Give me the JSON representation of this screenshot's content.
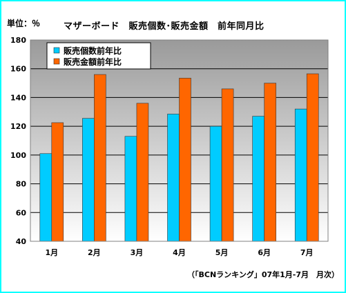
{
  "unit_label": "単位：％",
  "title": "マザーボード　販売個数･販売金額　前年同月比",
  "source_note": "（「BCNランキング」07年1月-7月　月次）",
  "colors": {
    "series_quantity": "#00ccff",
    "series_amount": "#ff6600",
    "frame_border": "#00ffff",
    "plot_bg_top": "#9a9a9a",
    "plot_bg_bottom": "#ffffff"
  },
  "chart_data": {
    "type": "bar",
    "title": "マザーボード　販売個数･販売金額　前年同月比",
    "ylabel": "単位：％",
    "xlabel": "",
    "categories": [
      "1月",
      "2月",
      "3月",
      "4月",
      "5月",
      "6月",
      "7月"
    ],
    "series": [
      {
        "name": "販売個数前年比",
        "values": [
          101,
          125.5,
          113,
          128.5,
          120,
          127,
          132
        ]
      },
      {
        "name": "販売金額前年比",
        "values": [
          122.5,
          156,
          136,
          153.5,
          146,
          150,
          156.5
        ]
      }
    ],
    "ylim": [
      40,
      180
    ],
    "yticks": [
      40,
      60,
      80,
      100,
      120,
      140,
      160,
      180
    ],
    "grid": true,
    "legend": "top-left"
  }
}
